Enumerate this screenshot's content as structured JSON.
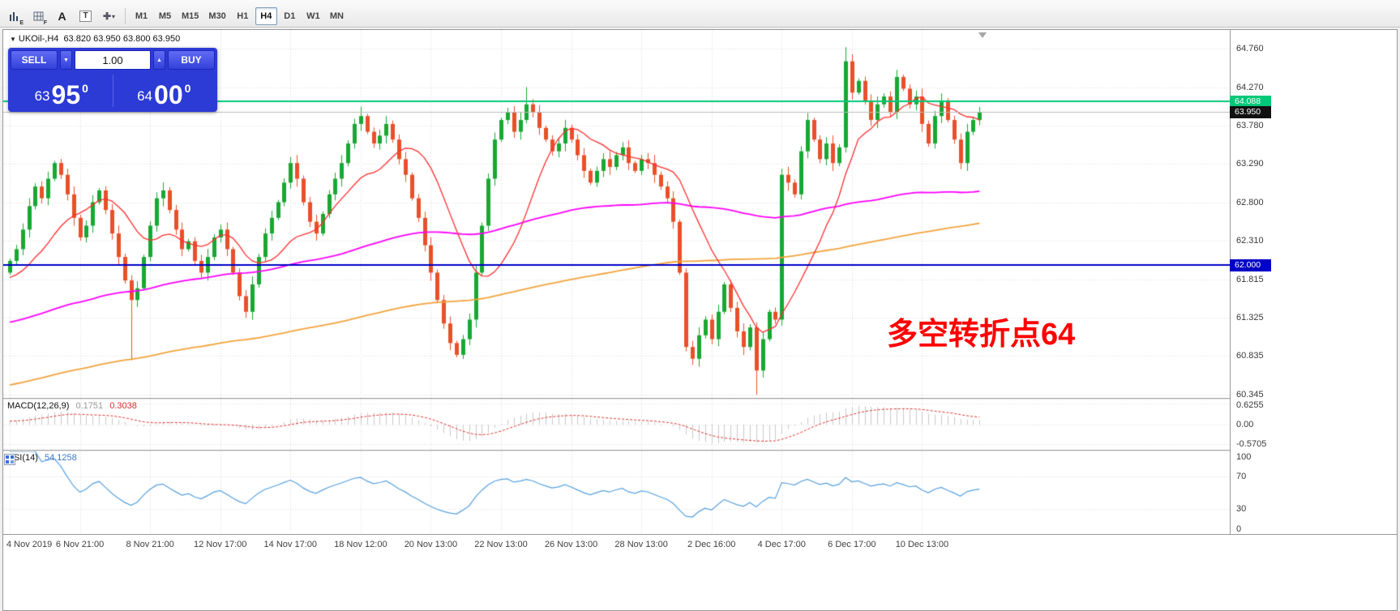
{
  "toolbar": {
    "icons": [
      {
        "name": "bar-chart-tool",
        "text": "E"
      },
      {
        "name": "grid-tool",
        "text": "F"
      },
      {
        "name": "text-tool",
        "text": "A"
      },
      {
        "name": "text-label-tool",
        "text": "T"
      },
      {
        "name": "draw-tools",
        "text": "▾",
        "glyph": "✚"
      }
    ],
    "timeframes": [
      "M1",
      "M5",
      "M15",
      "M30",
      "H1",
      "H4",
      "D1",
      "W1",
      "MN"
    ],
    "active_timeframe": "H4"
  },
  "win": {
    "title": {
      "collapse": "▼",
      "symbol": "UKOil-,H4",
      "ohlc": "63.820 63.950 63.800 63.950"
    },
    "trade": {
      "sell": "SELL",
      "buy": "BUY",
      "volume": "1.00",
      "down": "▼",
      "up": "▲",
      "sell_price": {
        "h": "63",
        "b": "95",
        "s": "0"
      },
      "buy_price": {
        "h": "64",
        "b": "00",
        "s": "0"
      }
    },
    "annotation": "多空转折点64",
    "annotation_color": "#FF0000",
    "tags": [
      {
        "text": "64.088",
        "price": 64.088,
        "bg": "#00C878"
      },
      {
        "text": "63.950",
        "price": 63.95,
        "bg": "#111111"
      },
      {
        "text": "62.000",
        "price": 62.0,
        "bg": "#0000C8"
      }
    ]
  },
  "chart_data": {
    "type": "candlestick",
    "symbol": "UKOil-,H4",
    "ylim": [
      60.3,
      65.0
    ],
    "grid_color": "#DADADA",
    "bull_color": "#18A832",
    "bear_color": "#E8502A",
    "first_open": 61.9,
    "price_axis_labels": [
      "64.760",
      "64.270",
      "63.780",
      "63.290",
      "62.800",
      "62.310",
      "61.815",
      "61.325",
      "60.835",
      "60.345"
    ],
    "time_axis": [
      {
        "label": "4 Nov 2019",
        "i": 0
      },
      {
        "label": "6 Nov 21:00",
        "i": 11
      },
      {
        "label": "8 Nov 21:00",
        "i": 22
      },
      {
        "label": "12 Nov 17:00",
        "i": 33
      },
      {
        "label": "14 Nov 17:00",
        "i": 44
      },
      {
        "label": "18 Nov 12:00",
        "i": 55
      },
      {
        "label": "20 Nov 13:00",
        "i": 66
      },
      {
        "label": "22 Nov 13:00",
        "i": 77
      },
      {
        "label": "26 Nov 13:00",
        "i": 88
      },
      {
        "label": "28 Nov 13:00",
        "i": 99
      },
      {
        "label": "2 Dec 16:00",
        "i": 110
      },
      {
        "label": "4 Dec 17:00",
        "i": 121
      },
      {
        "label": "6 Dec 17:00",
        "i": 132
      },
      {
        "label": "10 Dec 13:00",
        "i": 143
      }
    ],
    "closes": [
      62.05,
      62.2,
      62.45,
      62.75,
      63.0,
      62.85,
      63.1,
      63.3,
      63.15,
      62.9,
      62.6,
      62.35,
      62.5,
      62.8,
      62.95,
      62.7,
      62.4,
      62.1,
      61.8,
      61.55,
      61.7,
      62.1,
      62.5,
      62.85,
      62.95,
      62.7,
      62.45,
      62.2,
      62.3,
      62.05,
      61.9,
      62.1,
      62.35,
      62.45,
      62.2,
      61.9,
      61.6,
      61.4,
      61.75,
      62.1,
      62.4,
      62.6,
      62.8,
      63.05,
      63.3,
      63.1,
      62.8,
      62.55,
      62.4,
      62.65,
      62.9,
      63.1,
      63.3,
      63.55,
      63.8,
      63.9,
      63.7,
      63.55,
      63.65,
      63.8,
      63.6,
      63.35,
      63.15,
      62.85,
      62.6,
      62.25,
      61.9,
      61.55,
      61.25,
      61.0,
      60.85,
      61.05,
      61.3,
      61.9,
      62.5,
      63.1,
      63.6,
      63.85,
      63.95,
      63.7,
      63.85,
      64.05,
      63.95,
      63.75,
      63.6,
      63.45,
      63.55,
      63.75,
      63.6,
      63.4,
      63.2,
      63.05,
      63.2,
      63.35,
      63.25,
      63.4,
      63.5,
      63.3,
      63.2,
      63.35,
      63.3,
      63.15,
      63.0,
      62.85,
      62.55,
      61.9,
      60.95,
      60.8,
      61.1,
      61.3,
      61.05,
      61.4,
      61.75,
      61.45,
      61.15,
      60.95,
      61.2,
      60.65,
      61.05,
      61.4,
      61.3,
      63.15,
      63.05,
      62.9,
      63.45,
      63.85,
      63.6,
      63.35,
      63.55,
      63.3,
      63.5,
      64.6,
      64.2,
      64.35,
      64.1,
      63.85,
      64.05,
      64.15,
      63.95,
      64.4,
      64.25,
      64.05,
      64.15,
      63.8,
      63.55,
      63.9,
      64.1,
      63.85,
      63.6,
      63.3,
      63.7,
      63.85,
      63.95
    ],
    "spikes": {
      "19": {
        "low": 60.78
      },
      "55": {
        "high": 64.02
      },
      "81": {
        "high": 64.27
      },
      "117": {
        "low": 60.34
      },
      "131": {
        "high": 64.78
      }
    },
    "hlines": [
      {
        "price": 63.95,
        "color": "#BBBBBB",
        "width": 1
      },
      {
        "price": 64.088,
        "color": "#00C878",
        "width": 2
      },
      {
        "price": 62.0,
        "color": "#0000C8",
        "width": 2
      }
    ],
    "moving_averages": [
      {
        "period": 200,
        "color": "#F2A33C",
        "width": 1.8
      },
      {
        "period": 90,
        "color": "#FF00FF",
        "width": 1.8
      },
      {
        "period": 13,
        "color": "#FF2E2E",
        "width": 1.3
      }
    ],
    "indicators": {
      "macd": {
        "name": "MACD(12,26,9)",
        "main": "0.1751",
        "signal": "0.3038",
        "axis_labels": [
          "0.6255",
          "0.00",
          "-0.5705"
        ],
        "hist_color": "#C8C8C8",
        "signal_color": "#E03030"
      },
      "rsi": {
        "name": "RSI(14)",
        "value": "54.1258",
        "axis_labels": [
          "100",
          "70",
          "30",
          "0"
        ],
        "line_color": "#57A0DE",
        "levels": [
          70,
          30
        ]
      }
    }
  }
}
